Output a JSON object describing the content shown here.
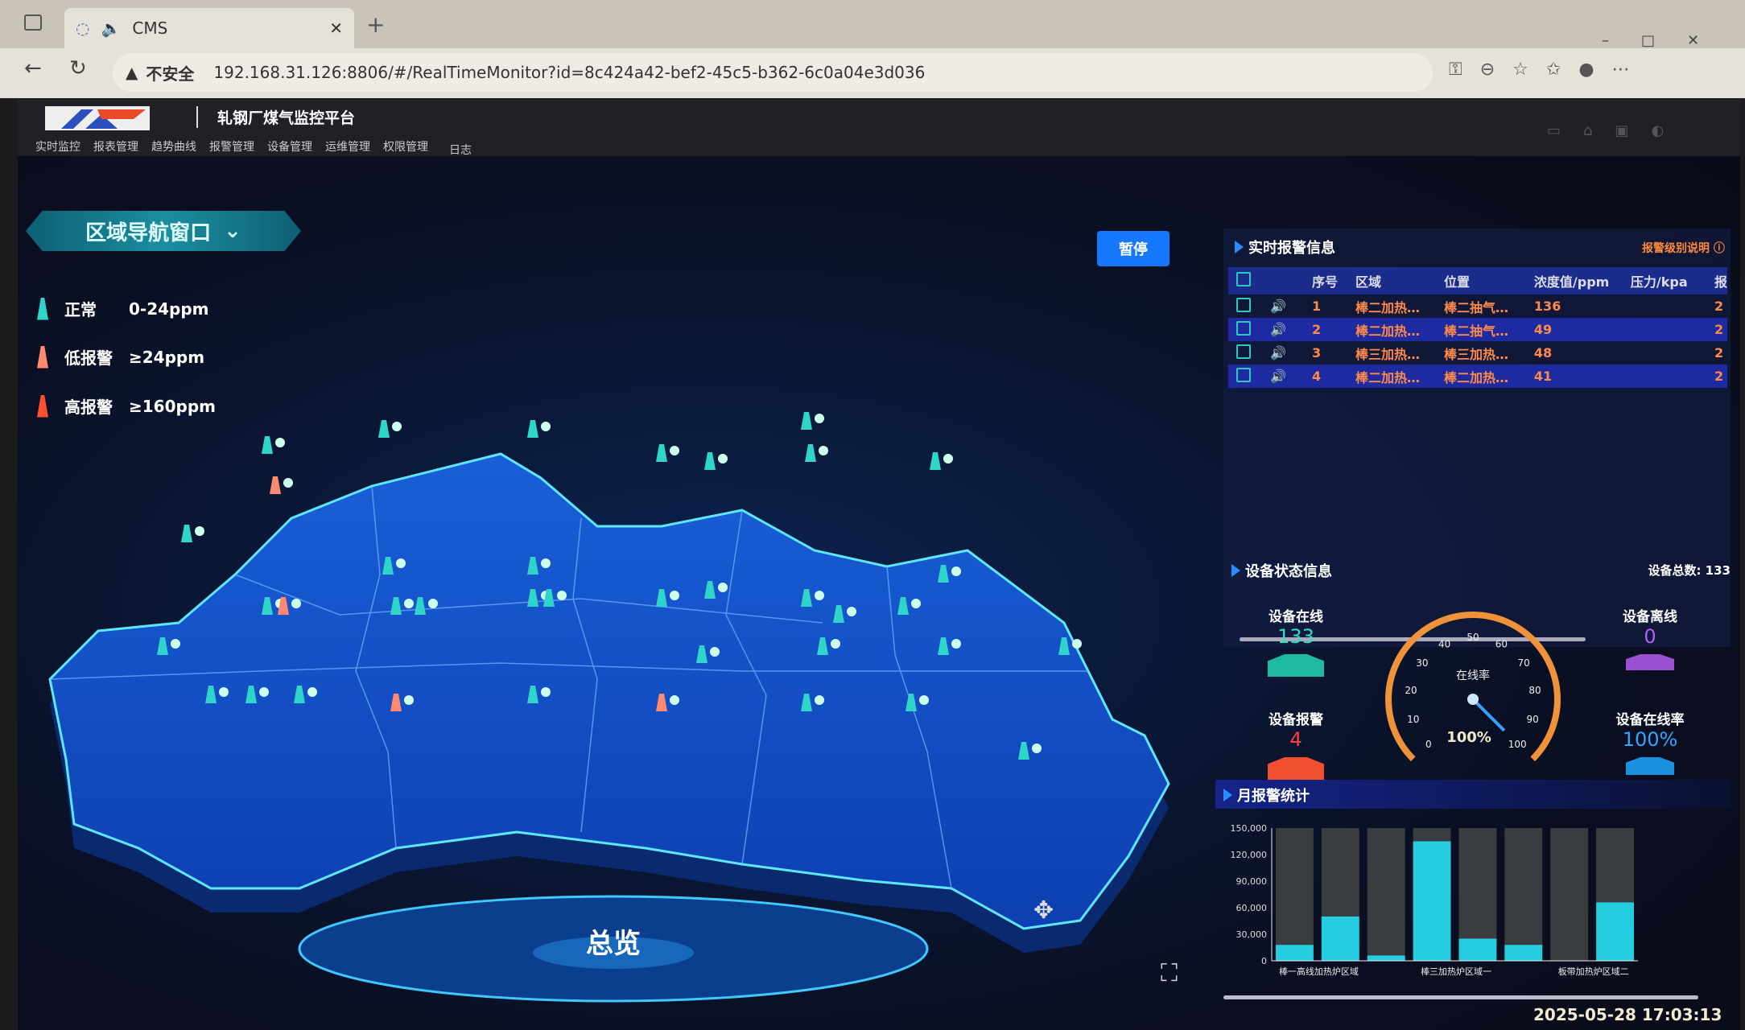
{
  "browser": {
    "tab_title": "CMS",
    "security": "不安全",
    "url": "192.168.31.126:8806/#/RealTimeMonitor?id=8c424a42-bef2-45c5-b362-6c0a04e3d036"
  },
  "header": {
    "title": "轧钢厂煤气监控平台",
    "nav": [
      "实时监控",
      "报表管理",
      "趋势曲线",
      "报警管理",
      "设备管理",
      "运维管理",
      "权限管理",
      "日志"
    ]
  },
  "region_nav": {
    "label": "区域导航窗口"
  },
  "legend": [
    {
      "label": "正常",
      "range": "0-24ppm",
      "color": "#2fd5c8"
    },
    {
      "label": "低报警",
      "range": "≥24ppm",
      "color": "#ff8a70"
    },
    {
      "label": "高报警",
      "range": "≥160ppm",
      "color": "#ff5030"
    }
  ],
  "pause_label": "暂停",
  "overview_label": "总览",
  "alarm": {
    "title": "实时报警信息",
    "level_help": "报警级别说明",
    "columns": [
      "序号",
      "区域",
      "位置",
      "浓度值/ppm",
      "压力/kpa",
      "报"
    ],
    "rows": [
      {
        "no": "1",
        "area": "棒二加热…",
        "pos": "棒二抽气…",
        "ppm": "136",
        "pressure": "",
        "level": "2"
      },
      {
        "no": "2",
        "area": "棒二加热…",
        "pos": "棒二抽气…",
        "ppm": "49",
        "pressure": "",
        "level": "2"
      },
      {
        "no": "3",
        "area": "棒三加热…",
        "pos": "棒三加热…",
        "ppm": "48",
        "pressure": "",
        "level": "2"
      },
      {
        "no": "4",
        "area": "棒二加热…",
        "pos": "棒二加热…",
        "ppm": "41",
        "pressure": "",
        "level": "2"
      }
    ]
  },
  "status": {
    "title": "设备状态信息",
    "total": "设备总数: 133",
    "online_label": "设备在线",
    "online": "133",
    "alarm_label": "设备报警",
    "alarm": "4",
    "offline_label": "设备离线",
    "offline": "0",
    "rate_label": "设备在线率",
    "rate": "100%",
    "gauge_label": "在线率",
    "gauge_value": 100,
    "gauge_text": "100%",
    "gauge_ticks": [
      "0",
      "10",
      "20",
      "30",
      "40",
      "50",
      "60",
      "70",
      "80",
      "90",
      "100"
    ]
  },
  "chart_data": {
    "type": "bar",
    "title": "月报警统计",
    "ylim": [
      0,
      150000
    ],
    "yticks": [
      "0",
      "30,000",
      "60,000",
      "90,000",
      "120,000",
      "150,000"
    ],
    "categories": [
      "棒一高线加热炉区域",
      "",
      "",
      "棒三加热炉区域一",
      "",
      "",
      "板带加热炉区域二",
      ""
    ],
    "values": [
      18000,
      50000,
      6000,
      135000,
      25000,
      18000,
      0,
      66000
    ],
    "grid": true
  },
  "timestamp": "2025-05-28 17:03:13"
}
